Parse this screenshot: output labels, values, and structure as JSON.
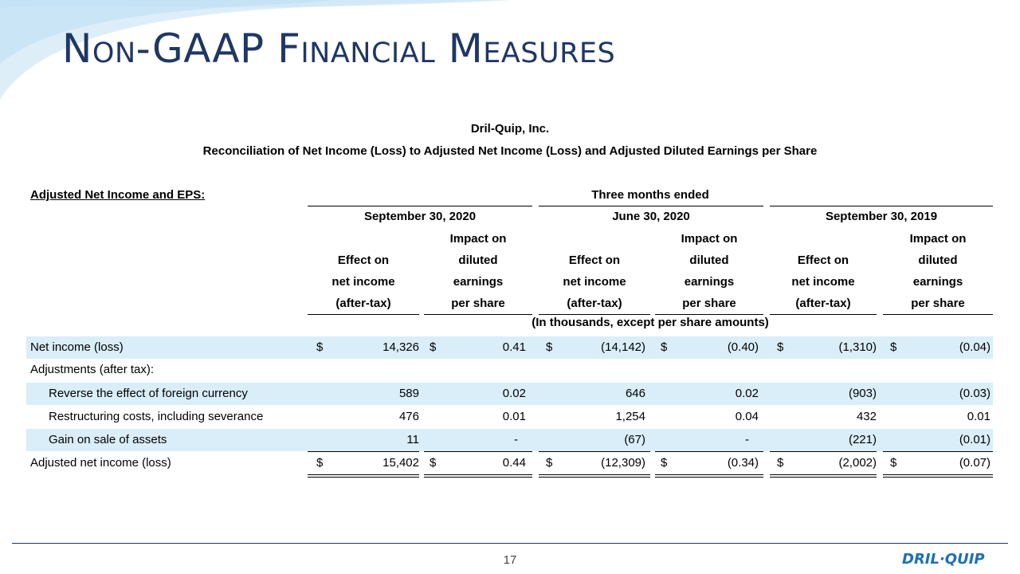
{
  "slide": {
    "title": "Non-GAAP Financial Measures",
    "page_number": "17",
    "logo_text": "DRIL·QUIP"
  },
  "report": {
    "company": "Dril-Quip, Inc.",
    "subtitle": "Reconciliation of Net Income (Loss) to Adjusted Net Income (Loss) and Adjusted Diluted Earnings per Share",
    "section_label": "Adjusted Net Income and EPS:",
    "period_header": "Three months ended",
    "units_note": "(In thousands, except per share amounts)",
    "periods": [
      "September 30, 2020",
      "June 30, 2020",
      "September 30, 2019"
    ],
    "col_header_effect": [
      "Effect on",
      "net income",
      "(after-tax)"
    ],
    "col_header_impact": [
      "Impact on",
      "diluted",
      "earnings",
      "per share"
    ],
    "rows": [
      {
        "label": "Net income (loss)",
        "values": [
          "14,326",
          "0.41",
          "(14,142)",
          "(0.40)",
          "(1,310)",
          "(0.04)"
        ],
        "dollar": "$"
      },
      {
        "label": "Adjustments (after tax):",
        "values": [
          "",
          "",
          "",
          "",
          "",
          ""
        ]
      },
      {
        "label": "Reverse the effect of foreign currency",
        "values": [
          "589",
          "0.02",
          "646",
          "0.02",
          "(903)",
          "(0.03)"
        ]
      },
      {
        "label": "Restructuring costs, including severance",
        "values": [
          "476",
          "0.01",
          "1,254",
          "0.04",
          "432",
          "0.01"
        ]
      },
      {
        "label": "Gain on sale of assets",
        "values": [
          "11",
          "-",
          "(67)",
          "-",
          "(221)",
          "(0.01)"
        ]
      },
      {
        "label": "Adjusted net income (loss)",
        "values": [
          "15,402",
          "0.44",
          "(12,309)",
          "(0.34)",
          "(2,002)",
          "(0.07)"
        ],
        "dollar": "$"
      }
    ]
  },
  "colors": {
    "title": "#1f3764",
    "row_shade": "#daeef9",
    "logo": "#1f6fb5"
  }
}
